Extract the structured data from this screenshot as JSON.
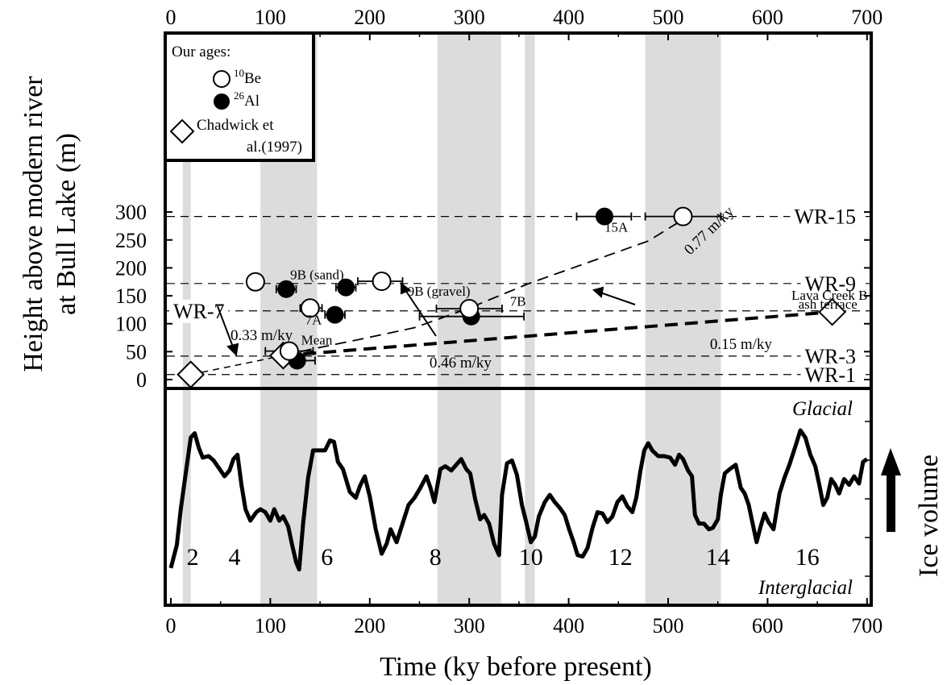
{
  "chart_data": {
    "type": "scatter",
    "x_axis": {
      "label": "Time (ky before present)",
      "range": [
        0,
        700
      ],
      "ticks": [
        0,
        100,
        200,
        300,
        400,
        500,
        600,
        700
      ]
    },
    "y_axis": {
      "label_line1": "Height above modern river",
      "label_line2": "at Bull Lake (m)",
      "range": [
        0,
        300
      ],
      "ticks": [
        0,
        50,
        100,
        150,
        200,
        250,
        300
      ]
    },
    "right_axis_label": "Ice volume",
    "legend": {
      "title": "Our ages:",
      "be_sup": "10",
      "be_text": "Be",
      "al_sup": "26",
      "al_text": "Al",
      "chadwick_line1": "Chadwick et",
      "chadwick_line2": "al.(1997)"
    },
    "terraces": [
      {
        "name": "WR-15",
        "height": 292
      },
      {
        "name": "WR-9",
        "height": 172
      },
      {
        "name": "WR-7",
        "height": 123
      },
      {
        "name": "WR-3",
        "height": 42
      },
      {
        "name": "WR-1",
        "height": 9
      }
    ],
    "shaded_intervals": [
      [
        12,
        20
      ],
      [
        90,
        147
      ],
      [
        268,
        332
      ],
      [
        356,
        366
      ],
      [
        477,
        553
      ]
    ],
    "be10_ages": [
      {
        "x": 515,
        "y": 292,
        "xerr": [
          477,
          553
        ]
      },
      {
        "x": 85,
        "y": 175,
        "xerr": [
          85,
          85
        ]
      },
      {
        "x": 212,
        "y": 176,
        "xerr": [
          188,
          233
        ]
      },
      {
        "x": 140,
        "y": 128,
        "xerr": [
          130,
          152
        ]
      },
      {
        "x": 300,
        "y": 127,
        "xerr": [
          267,
          333
        ]
      },
      {
        "x": 119,
        "y": 51,
        "xerr": [
          95,
          143
        ]
      }
    ],
    "al26_ages": [
      {
        "x": 436,
        "y": 292,
        "xerr": [
          408,
          463
        ]
      },
      {
        "x": 116,
        "y": 162,
        "xerr": [
          106,
          126
        ]
      },
      {
        "x": 176,
        "y": 165,
        "xerr": [
          166,
          186
        ]
      },
      {
        "x": 165,
        "y": 116,
        "xerr": [
          155,
          175
        ]
      },
      {
        "x": 302,
        "y": 113,
        "xerr": [
          250,
          355
        ]
      },
      {
        "x": 127,
        "y": 34,
        "xerr": [
          118,
          145
        ]
      }
    ],
    "chadwick_ages": [
      {
        "x": 20,
        "y": 9
      },
      {
        "x": 113,
        "y": 43
      },
      {
        "x": 665,
        "y": 121
      }
    ],
    "sample_labels": [
      {
        "text": "15A",
        "x": 436,
        "y": 265
      },
      {
        "text": "9B (sand)",
        "x": 120,
        "y": 180
      },
      {
        "text": "9B (gravel)",
        "x": 238,
        "y": 150
      },
      {
        "text": "7B",
        "x": 341,
        "y": 132
      },
      {
        "text": "7A",
        "x": 135,
        "y": 99
      },
      {
        "text": "Mean",
        "x": 131,
        "y": 63
      },
      {
        "text": "Lava Creek B",
        "x": 624,
        "y": 143
      },
      {
        "text": "ash terrace",
        "x": 631,
        "y": 127
      }
    ],
    "rates": [
      {
        "label": "0.77 m/ky",
        "x": 522,
        "y": 222
      },
      {
        "label": "0.46 m/ky",
        "x": 260,
        "y": 22
      },
      {
        "label": "0.33 m/ky",
        "x": 60,
        "y": 71
      },
      {
        "label": "0.15 m/ky",
        "x": 542,
        "y": 55
      }
    ],
    "isotope_panel": {
      "top_label": "Glacial",
      "bottom_label": "Interglacial",
      "stages": [
        {
          "label": "2",
          "x": 22
        },
        {
          "label": "4",
          "x": 64
        },
        {
          "label": "6",
          "x": 157
        },
        {
          "label": "8",
          "x": 266
        },
        {
          "label": "10",
          "x": 362
        },
        {
          "label": "12",
          "x": 452
        },
        {
          "label": "14",
          "x": 550
        },
        {
          "label": "16",
          "x": 640
        }
      ],
      "ice_volume_curve": [
        [
          0,
          0.04
        ],
        [
          6,
          0.2
        ],
        [
          10,
          0.45
        ],
        [
          16,
          0.75
        ],
        [
          20,
          0.95
        ],
        [
          24,
          0.98
        ],
        [
          28,
          0.88
        ],
        [
          32,
          0.81
        ],
        [
          38,
          0.82
        ],
        [
          43,
          0.79
        ],
        [
          49,
          0.73
        ],
        [
          54,
          0.68
        ],
        [
          59,
          0.72
        ],
        [
          63,
          0.8
        ],
        [
          67,
          0.83
        ],
        [
          71,
          0.62
        ],
        [
          75,
          0.45
        ],
        [
          80,
          0.37
        ],
        [
          86,
          0.43
        ],
        [
          90,
          0.45
        ],
        [
          95,
          0.43
        ],
        [
          100,
          0.37
        ],
        [
          104,
          0.45
        ],
        [
          109,
          0.37
        ],
        [
          113,
          0.4
        ],
        [
          118,
          0.33
        ],
        [
          122,
          0.2
        ],
        [
          126,
          0.08
        ],
        [
          129,
          0.03
        ],
        [
          133,
          0.35
        ],
        [
          138,
          0.67
        ],
        [
          143,
          0.86
        ],
        [
          149,
          0.86
        ],
        [
          155,
          0.86
        ],
        [
          160,
          0.93
        ],
        [
          164,
          0.92
        ],
        [
          168,
          0.78
        ],
        [
          173,
          0.73
        ],
        [
          180,
          0.57
        ],
        [
          186,
          0.53
        ],
        [
          190,
          0.61
        ],
        [
          195,
          0.68
        ],
        [
          200,
          0.54
        ],
        [
          206,
          0.31
        ],
        [
          212,
          0.14
        ],
        [
          217,
          0.21
        ],
        [
          221,
          0.31
        ],
        [
          227,
          0.22
        ],
        [
          233,
          0.35
        ],
        [
          239,
          0.48
        ],
        [
          245,
          0.53
        ],
        [
          251,
          0.6
        ],
        [
          257,
          0.68
        ],
        [
          261,
          0.6
        ],
        [
          265,
          0.5
        ],
        [
          271,
          0.73
        ],
        [
          276,
          0.75
        ],
        [
          282,
          0.72
        ],
        [
          287,
          0.76
        ],
        [
          292,
          0.8
        ],
        [
          297,
          0.73
        ],
        [
          301,
          0.7
        ],
        [
          306,
          0.52
        ],
        [
          311,
          0.38
        ],
        [
          315,
          0.41
        ],
        [
          320,
          0.35
        ],
        [
          325,
          0.21
        ],
        [
          330,
          0.13
        ],
        [
          333,
          0.55
        ],
        [
          338,
          0.77
        ],
        [
          343,
          0.79
        ],
        [
          348,
          0.69
        ],
        [
          353,
          0.48
        ],
        [
          357,
          0.37
        ],
        [
          362,
          0.22
        ],
        [
          366,
          0.26
        ],
        [
          370,
          0.4
        ],
        [
          376,
          0.5
        ],
        [
          381,
          0.55
        ],
        [
          386,
          0.5
        ],
        [
          391,
          0.46
        ],
        [
          396,
          0.41
        ],
        [
          401,
          0.3
        ],
        [
          405,
          0.22
        ],
        [
          409,
          0.13
        ],
        [
          414,
          0.12
        ],
        [
          419,
          0.18
        ],
        [
          424,
          0.32
        ],
        [
          429,
          0.43
        ],
        [
          434,
          0.42
        ],
        [
          439,
          0.36
        ],
        [
          444,
          0.4
        ],
        [
          449,
          0.5
        ],
        [
          454,
          0.54
        ],
        [
          459,
          0.47
        ],
        [
          464,
          0.43
        ],
        [
          468,
          0.53
        ],
        [
          472,
          0.71
        ],
        [
          476,
          0.86
        ],
        [
          480,
          0.91
        ],
        [
          484,
          0.86
        ],
        [
          490,
          0.82
        ],
        [
          496,
          0.82
        ],
        [
          502,
          0.81
        ],
        [
          507,
          0.76
        ],
        [
          511,
          0.83
        ],
        [
          515,
          0.8
        ],
        [
          520,
          0.72
        ],
        [
          524,
          0.68
        ],
        [
          527,
          0.41
        ],
        [
          531,
          0.35
        ],
        [
          536,
          0.35
        ],
        [
          541,
          0.31
        ],
        [
          545,
          0.32
        ],
        [
          550,
          0.38
        ],
        [
          553,
          0.55
        ],
        [
          557,
          0.7
        ],
        [
          562,
          0.73
        ],
        [
          568,
          0.76
        ],
        [
          573,
          0.6
        ],
        [
          577,
          0.56
        ],
        [
          581,
          0.48
        ],
        [
          585,
          0.35
        ],
        [
          589,
          0.22
        ],
        [
          593,
          0.33
        ],
        [
          597,
          0.42
        ],
        [
          601,
          0.36
        ],
        [
          606,
          0.31
        ],
        [
          612,
          0.56
        ],
        [
          617,
          0.67
        ],
        [
          622,
          0.76
        ],
        [
          628,
          0.89
        ],
        [
          633,
          1.0
        ],
        [
          638,
          0.95
        ],
        [
          643,
          0.83
        ],
        [
          648,
          0.75
        ],
        [
          652,
          0.62
        ],
        [
          656,
          0.48
        ],
        [
          660,
          0.53
        ],
        [
          664,
          0.66
        ],
        [
          668,
          0.62
        ],
        [
          672,
          0.56
        ],
        [
          677,
          0.66
        ],
        [
          682,
          0.62
        ],
        [
          687,
          0.68
        ],
        [
          692,
          0.63
        ],
        [
          696,
          0.78
        ],
        [
          700,
          0.8
        ]
      ]
    }
  }
}
